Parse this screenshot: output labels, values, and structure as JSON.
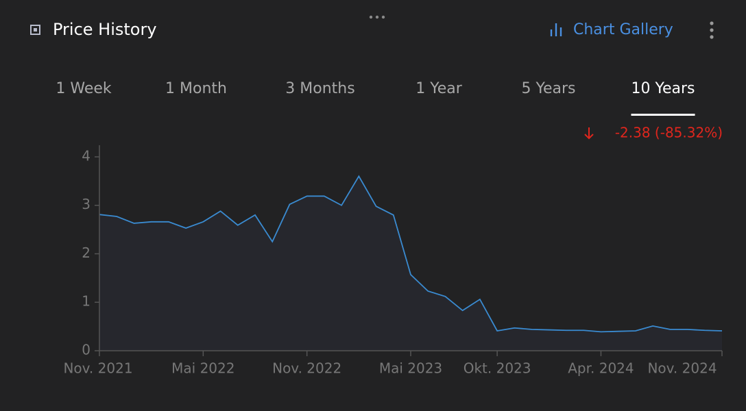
{
  "header": {
    "title": "Price History",
    "gallery_link": "Chart Gallery"
  },
  "tabs": [
    {
      "label": "1 Week"
    },
    {
      "label": "1 Month"
    },
    {
      "label": "3 Months"
    },
    {
      "label": "1 Year"
    },
    {
      "label": "5 Years"
    },
    {
      "label": "10 Years",
      "selected": true
    }
  ],
  "change": "-2.38 (-85.32%)",
  "chart_data": {
    "type": "area",
    "categories": [
      "Nov. 2021",
      null,
      null,
      null,
      null,
      null,
      "Mai 2022",
      null,
      null,
      null,
      null,
      null,
      "Nov. 2022",
      null,
      null,
      null,
      null,
      null,
      "Mai 2023",
      null,
      null,
      null,
      null,
      "Okt. 2023",
      null,
      null,
      null,
      null,
      null,
      "Apr. 2024",
      null,
      null,
      null,
      null,
      null,
      null,
      "Nov. 2024"
    ],
    "values": [
      2.81,
      2.77,
      2.63,
      2.66,
      2.66,
      2.53,
      2.66,
      2.88,
      2.59,
      2.8,
      2.25,
      3.02,
      3.19,
      3.19,
      3.0,
      3.6,
      2.98,
      2.8,
      1.57,
      1.23,
      1.12,
      0.83,
      1.06,
      0.41,
      0.47,
      0.44,
      0.43,
      0.42,
      0.42,
      0.39,
      0.4,
      0.41,
      0.51,
      0.44,
      0.44,
      0.42,
      0.41
    ],
    "color": "#3a8bd1",
    "ylim": [
      0,
      4.24
    ],
    "yticks": [
      0,
      1,
      2,
      3,
      4
    ]
  }
}
